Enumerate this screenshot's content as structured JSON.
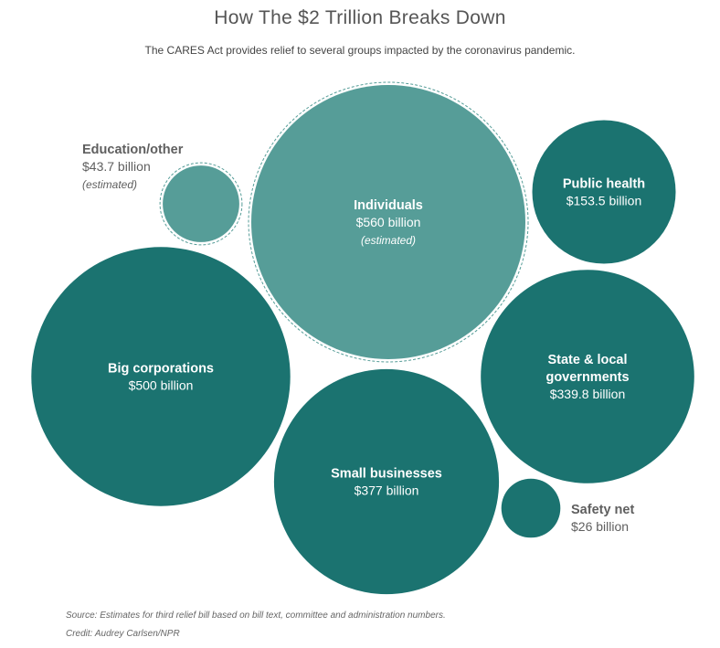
{
  "title": "How The $2 Trillion Breaks Down",
  "subtitle": "The CARES Act provides relief to several groups impacted by the coronavirus pandemic.",
  "source": "Source: Estimates for third relief bill based on bill text, committee and administration numbers.",
  "credit": "Credit: Audrey Carlsen/NPR",
  "colors": {
    "estimated": "#569d98",
    "confirmed": "#1b7370",
    "outside_label": "#5f5f5f",
    "inside_label": "#ffffff"
  },
  "chart_data": {
    "type": "bubble",
    "unit": "billion USD",
    "series": [
      {
        "name": "Individuals",
        "value": 560,
        "value_label": "$560 billion",
        "note": "(estimated)",
        "estimated": true
      },
      {
        "name": "Big corporations",
        "value": 500,
        "value_label": "$500 billion",
        "note": "",
        "estimated": false
      },
      {
        "name": "Small businesses",
        "value": 377,
        "value_label": "$377 billion",
        "note": "",
        "estimated": false
      },
      {
        "name": "State & local governments",
        "value": 339.8,
        "value_label": "$339.8 billion",
        "note": "",
        "estimated": false
      },
      {
        "name": "Public health",
        "value": 153.5,
        "value_label": "$153.5 billion",
        "note": "",
        "estimated": false
      },
      {
        "name": "Education/other",
        "value": 43.7,
        "value_label": "$43.7 billion",
        "note": "(estimated)",
        "estimated": true
      },
      {
        "name": "Safety net",
        "value": 26,
        "value_label": "$26 billion",
        "note": "",
        "estimated": false
      }
    ]
  }
}
